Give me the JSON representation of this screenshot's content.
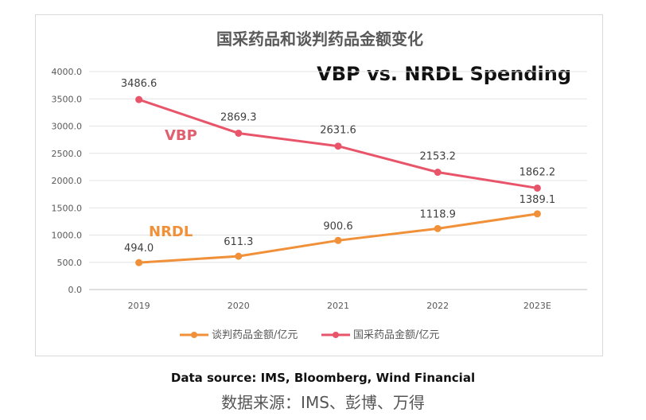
{
  "chart_data": {
    "type": "line",
    "title": "国采药品和谈判药品金额变化",
    "overlay_title": "VBP vs. NRDL Spending",
    "categories": [
      "2019",
      "2020",
      "2021",
      "2022",
      "2023E"
    ],
    "ylim": [
      0,
      4000
    ],
    "yticks": [
      "4000.0",
      "3500.0",
      "3000.0",
      "2500.0",
      "2000.0",
      "1500.0",
      "1000.0",
      "500.0",
      "0.0"
    ],
    "grid": true,
    "legend_position": "bottom",
    "series": [
      {
        "name": "国采药品金额/亿元",
        "tag": "VBP",
        "color": "#e8556a",
        "tag_color": "#e06070",
        "values": [
          3486.6,
          2869.3,
          2631.6,
          2153.2,
          1862.2
        ],
        "labels": [
          "3486.6",
          "2869.3",
          "2631.6",
          "2153.2",
          "1862.2"
        ]
      },
      {
        "name": "谈判药品金额/亿元",
        "tag": "NRDL",
        "color": "#f0913a",
        "tag_color": "#f0913a",
        "values": [
          494.0,
          611.3,
          900.6,
          1118.9,
          1389.1
        ],
        "labels": [
          "494.0",
          "611.3",
          "900.6",
          "1118.9",
          "1389.1"
        ]
      }
    ]
  },
  "source": {
    "en": "Data source: IMS, Bloomberg, Wind Financial",
    "cn": "数据来源：IMS、彭博、万得"
  }
}
